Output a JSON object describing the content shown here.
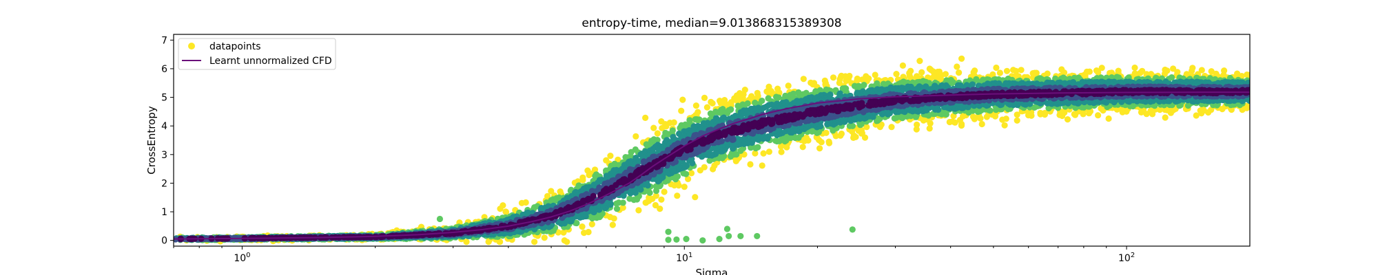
{
  "chart_data": {
    "type": "scatter",
    "title": "entropy-time, median=9.013868315389308",
    "xlabel": "Sigma",
    "ylabel": "CrossEntropy",
    "xscale": "log",
    "xlim": [
      0.7,
      190
    ],
    "ylim": [
      -0.2,
      7.2
    ],
    "x_ticks": [
      {
        "value": 1,
        "label": "10^0"
      },
      {
        "value": 10,
        "label": "10^1"
      },
      {
        "value": 100,
        "label": "10^2"
      }
    ],
    "y_ticks": [
      0,
      1,
      2,
      3,
      4,
      5,
      6,
      7
    ],
    "legend_position": "top-left",
    "colors": {
      "datapoints_legend": "#fde725",
      "curve": "#6a0f7a"
    },
    "colormap": [
      "#440154",
      "#3b528b",
      "#21918c",
      "#5ec962",
      "#fde725"
    ],
    "series": [
      {
        "name": "datapoints",
        "kind": "scatter",
        "summary": {
          "x": [
            0.7,
            1.0,
            2.0,
            3.0,
            4.0,
            5.0,
            6.0,
            7.0,
            8.0,
            9.0,
            10.0,
            12.0,
            15.0,
            20.0,
            30.0,
            50.0,
            100.0,
            190.0
          ],
          "y_center": [
            0.05,
            0.07,
            0.12,
            0.25,
            0.5,
            0.85,
            1.35,
            1.9,
            2.4,
            2.8,
            3.2,
            3.7,
            4.1,
            4.5,
            4.9,
            5.1,
            5.2,
            5.2
          ],
          "y_spread": [
            0.05,
            0.05,
            0.08,
            0.2,
            0.4,
            0.6,
            0.8,
            0.9,
            1.0,
            1.0,
            1.0,
            0.95,
            0.9,
            0.85,
            0.7,
            0.6,
            0.55,
            0.5
          ]
        },
        "outliers": [
          {
            "x": 2.8,
            "y": 0.75
          },
          {
            "x": 9.2,
            "y": 0.3
          },
          {
            "x": 9.2,
            "y": 0.02
          },
          {
            "x": 9.6,
            "y": 0.03
          },
          {
            "x": 10.1,
            "y": 0.05
          },
          {
            "x": 11.0,
            "y": 0.0
          },
          {
            "x": 12.0,
            "y": 0.05
          },
          {
            "x": 12.5,
            "y": 0.4
          },
          {
            "x": 12.6,
            "y": 0.15
          },
          {
            "x": 13.4,
            "y": 0.15
          },
          {
            "x": 14.6,
            "y": 0.15
          },
          {
            "x": 24.0,
            "y": 0.38
          }
        ]
      },
      {
        "name": "Learnt unnormalized CFD",
        "kind": "line",
        "x": [
          0.7,
          1.0,
          1.5,
          2.0,
          2.5,
          3.0,
          3.5,
          4.0,
          4.5,
          5.0,
          5.5,
          6.0,
          6.5,
          7.0,
          7.5,
          8.0,
          8.5,
          9.0,
          10.0,
          11.0,
          12.0,
          13.0,
          14.0,
          15.0,
          17.0,
          20.0,
          25.0,
          30.0,
          40.0,
          50.0,
          70.0,
          100.0,
          150.0,
          190.0
        ],
        "y": [
          0.05,
          0.07,
          0.1,
          0.14,
          0.2,
          0.28,
          0.38,
          0.5,
          0.65,
          0.82,
          1.02,
          1.25,
          1.5,
          1.75,
          2.0,
          2.3,
          2.6,
          2.85,
          3.3,
          3.65,
          3.9,
          4.1,
          4.25,
          4.4,
          4.6,
          4.8,
          4.95,
          5.02,
          5.08,
          5.12,
          5.15,
          5.17,
          5.18,
          5.18
        ]
      }
    ]
  }
}
